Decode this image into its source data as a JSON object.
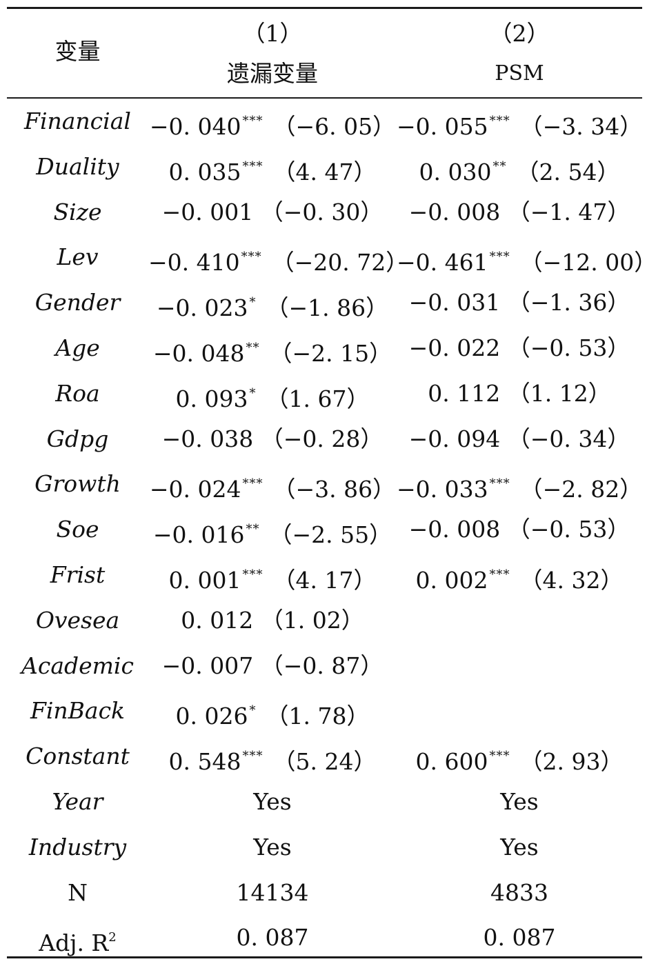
{
  "header": {
    "variable": "变量",
    "col1_number": "（1）",
    "col1_label": "遗漏变量",
    "col2_number": "（2）",
    "col2_label": "PSM"
  },
  "rows": [
    {
      "var": "Financial",
      "c1": {
        "coef": "−0. 040",
        "stars": "***",
        "t": "（−6. 05）"
      },
      "c2": {
        "coef": "−0. 055",
        "stars": "***",
        "t": "（−3. 34）"
      }
    },
    {
      "var": "Duality",
      "c1": {
        "coef": "0. 035",
        "stars": "***",
        "t": "（4. 47）"
      },
      "c2": {
        "coef": "0. 030",
        "stars": "**",
        "t": "（2. 54）"
      }
    },
    {
      "var": "Size",
      "c1": {
        "coef": "−0. 001",
        "stars": "",
        "t": "（−0. 30）"
      },
      "c2": {
        "coef": "−0. 008",
        "stars": "",
        "t": "（−1. 47）"
      }
    },
    {
      "var": "Lev",
      "c1": {
        "coef": "−0. 410",
        "stars": "***",
        "t": "（−20. 72）"
      },
      "c2": {
        "coef": "−0. 461",
        "stars": "***",
        "t": "（−12. 00）"
      }
    },
    {
      "var": "Gender",
      "c1": {
        "coef": "−0. 023",
        "stars": "*",
        "t": "（−1. 86）"
      },
      "c2": {
        "coef": "−0. 031",
        "stars": "",
        "t": "（−1. 36）"
      }
    },
    {
      "var": "Age",
      "c1": {
        "coef": "−0. 048",
        "stars": "**",
        "t": "（−2. 15）"
      },
      "c2": {
        "coef": "−0. 022",
        "stars": "",
        "t": "（−0. 53）"
      }
    },
    {
      "var": "Roa",
      "c1": {
        "coef": "0. 093",
        "stars": "*",
        "t": "（1. 67）"
      },
      "c2": {
        "coef": "0. 112",
        "stars": "",
        "t": "（1. 12）"
      }
    },
    {
      "var": "Gdpg",
      "c1": {
        "coef": "−0. 038",
        "stars": "",
        "t": "（−0. 28）"
      },
      "c2": {
        "coef": "−0. 094",
        "stars": "",
        "t": "（−0. 34）"
      }
    },
    {
      "var": "Growth",
      "c1": {
        "coef": "−0. 024",
        "stars": "***",
        "t": "（−3. 86）"
      },
      "c2": {
        "coef": "−0. 033",
        "stars": "***",
        "t": "（−2. 82）"
      }
    },
    {
      "var": "Soe",
      "c1": {
        "coef": "−0. 016",
        "stars": "**",
        "t": "（−2. 55）"
      },
      "c2": {
        "coef": "−0. 008",
        "stars": "",
        "t": "（−0. 53）"
      }
    },
    {
      "var": "Frist",
      "c1": {
        "coef": "0. 001",
        "stars": "***",
        "t": "（4. 17）"
      },
      "c2": {
        "coef": "0. 002",
        "stars": "***",
        "t": "（4. 32）"
      }
    },
    {
      "var": "Ovesea",
      "c1": {
        "coef": "0. 012",
        "stars": "",
        "t": "（1. 02）"
      },
      "c2": null
    },
    {
      "var": "Academic",
      "c1": {
        "coef": "−0. 007",
        "stars": "",
        "t": "（−0. 87）"
      },
      "c2": null
    },
    {
      "var": "FinBack",
      "c1": {
        "coef": "0. 026",
        "stars": "*",
        "t": "（1. 78）"
      },
      "c2": null
    },
    {
      "var": "Constant",
      "c1": {
        "coef": "0. 548",
        "stars": "***",
        "t": "（5. 24）"
      },
      "c2": {
        "coef": "0. 600",
        "stars": "***",
        "t": "（2. 93）"
      }
    },
    {
      "var": "Year",
      "c1": {
        "text": "Yes"
      },
      "c2": {
        "text": "Yes"
      }
    },
    {
      "var": "Industry",
      "c1": {
        "text": "Yes"
      },
      "c2": {
        "text": "Yes"
      }
    },
    {
      "var": "N",
      "plain": true,
      "c1": {
        "text": "14134"
      },
      "c2": {
        "text": "4833"
      }
    },
    {
      "var": "Adj. R",
      "var_sup": "2",
      "plain": true,
      "c1": {
        "text": "0. 087"
      },
      "c2": {
        "text": "0. 087"
      }
    }
  ]
}
